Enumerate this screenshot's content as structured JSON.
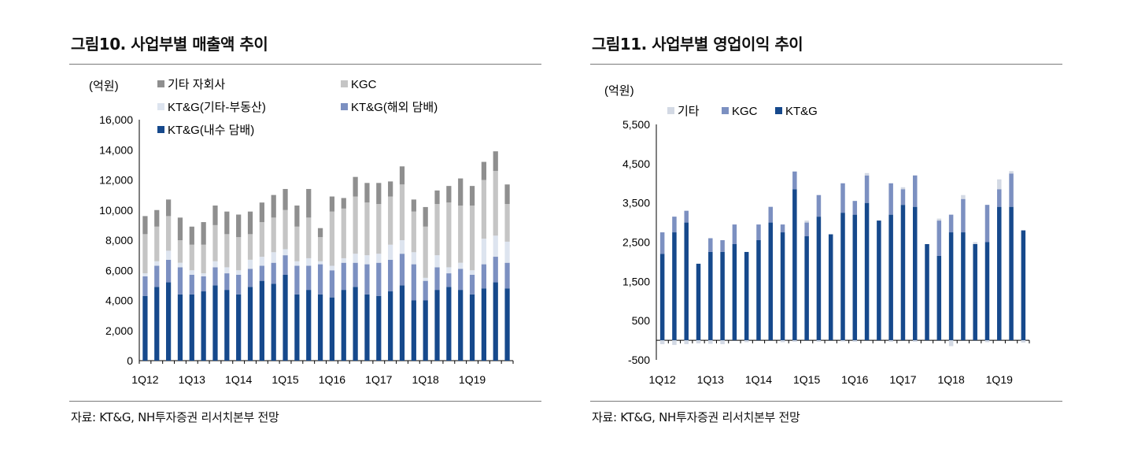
{
  "left": {
    "title": "그림10. 사업부별 매출액 추이",
    "source": "자료: KT&G, NH투자증권 리서치본부 전망",
    "chart_data": {
      "type": "bar",
      "stacked": true,
      "unit_label": "(억원)",
      "ylim": [
        0,
        16000
      ],
      "yticks": [
        "16,000",
        "14,000",
        "12,000",
        "10,000",
        "8,000",
        "6,000",
        "4,000",
        "2,000",
        "0"
      ],
      "ytick_values": [
        16000,
        14000,
        12000,
        10000,
        8000,
        6000,
        4000,
        2000,
        0
      ],
      "xtick_labels": [
        "1Q12",
        "1Q13",
        "1Q14",
        "1Q15",
        "1Q16",
        "1Q17",
        "1Q18",
        "1Q19"
      ],
      "legend": [
        "기타 자회사",
        "KGC",
        "KT&G(기타-부동산)",
        "KT&G(해외 담배)",
        "KT&G(내수 담배)"
      ],
      "colors": {
        "KT&G(내수 담배)": "#16498c",
        "KT&G(해외 담배)": "#7c90c1",
        "KT&G(기타-부동산)": "#dde4ef",
        "KGC": "#c5c5c5",
        "기타 자회사": "#8f8f8f"
      },
      "series": [
        {
          "name": "KT&G(내수 담배)",
          "values": [
            4300,
            4900,
            5200,
            4400,
            4400,
            4600,
            5000,
            4700,
            4400,
            4900,
            5300,
            5100,
            5700,
            4400,
            4700,
            4400,
            4200,
            4700,
            4900,
            4400,
            4300,
            4600,
            5000,
            4000,
            4000,
            4700,
            4900,
            4700,
            4400,
            4800,
            5200,
            4800
          ]
        },
        {
          "name": "KT&G(해외 담배)",
          "values": [
            1300,
            1400,
            1500,
            1800,
            1300,
            1000,
            1200,
            1100,
            1300,
            1200,
            1000,
            1400,
            1300,
            1900,
            1600,
            2000,
            1800,
            1800,
            1600,
            2000,
            2200,
            2100,
            2100,
            2400,
            1300,
            1500,
            900,
            1400,
            1300,
            1600,
            1700,
            1700
          ]
        },
        {
          "name": "KT&G(기타-부동산)",
          "values": [
            200,
            300,
            600,
            300,
            300,
            200,
            400,
            400,
            300,
            600,
            600,
            700,
            400,
            300,
            500,
            200,
            300,
            300,
            600,
            600,
            600,
            1000,
            900,
            800,
            200,
            800,
            400,
            400,
            300,
            1700,
            1400,
            1400
          ]
        },
        {
          "name": "KGC",
          "values": [
            2600,
            2300,
            2300,
            1500,
            1700,
            1900,
            2400,
            2200,
            2200,
            1700,
            2300,
            2300,
            2600,
            2300,
            2700,
            1600,
            3600,
            3300,
            3800,
            3500,
            3300,
            3200,
            3700,
            2700,
            3400,
            3400,
            4300,
            3800,
            4300,
            3900,
            4300,
            2500
          ]
        },
        {
          "name": "기타 자회사",
          "values": [
            1200,
            1100,
            1100,
            1500,
            1200,
            1500,
            1300,
            1500,
            1500,
            1500,
            1300,
            1500,
            1400,
            1400,
            1900,
            600,
            1000,
            700,
            1300,
            1300,
            1400,
            1000,
            1200,
            800,
            1300,
            900,
            1100,
            1800,
            1300,
            1200,
            1300,
            1300
          ]
        }
      ]
    }
  },
  "right": {
    "title": "그림11. 사업부별 영업이익 추이",
    "source": "자료: KT&G, NH투자증권 리서치본부 전망",
    "chart_data": {
      "type": "bar",
      "stacked": true,
      "unit_label": "(억원)",
      "ylim": [
        -500,
        5500
      ],
      "yticks": [
        "5,500",
        "4,500",
        "3,500",
        "2,500",
        "1,500",
        "500",
        "-500"
      ],
      "ytick_values": [
        5500,
        4500,
        3500,
        2500,
        1500,
        500,
        -500
      ],
      "xtick_labels": [
        "1Q12",
        "1Q13",
        "1Q14",
        "1Q15",
        "1Q16",
        "1Q17",
        "1Q18",
        "1Q19"
      ],
      "legend": [
        "기타",
        "KGC",
        "KT&G"
      ],
      "colors": {
        "KT&G": "#16498c",
        "KGC": "#7c90c1",
        "기타": "#d3d9e4"
      },
      "series": [
        {
          "name": "KT&G",
          "values": [
            2200,
            2750,
            3000,
            1950,
            2250,
            2250,
            2450,
            2250,
            2550,
            3000,
            2750,
            3850,
            2650,
            3150,
            2700,
            3250,
            3200,
            3500,
            3050,
            3200,
            3450,
            3400,
            2450,
            2150,
            2750,
            2750,
            2450,
            2500,
            3400,
            3400,
            2800
          ]
        },
        {
          "name": "KGC",
          "values": [
            550,
            400,
            300,
            0,
            350,
            300,
            500,
            0,
            400,
            400,
            200,
            450,
            350,
            550,
            0,
            750,
            350,
            700,
            0,
            800,
            400,
            800,
            0,
            900,
            450,
            850,
            0,
            950,
            450,
            850,
            0
          ]
        },
        {
          "name": "기타",
          "values": [
            -100,
            -120,
            -100,
            -80,
            -90,
            -100,
            0,
            -50,
            0,
            0,
            -50,
            -40,
            50,
            -40,
            0,
            -30,
            -40,
            60,
            0,
            -40,
            50,
            -40,
            0,
            50,
            -150,
            100,
            50,
            -50,
            250,
            60,
            -60
          ]
        }
      ]
    }
  }
}
